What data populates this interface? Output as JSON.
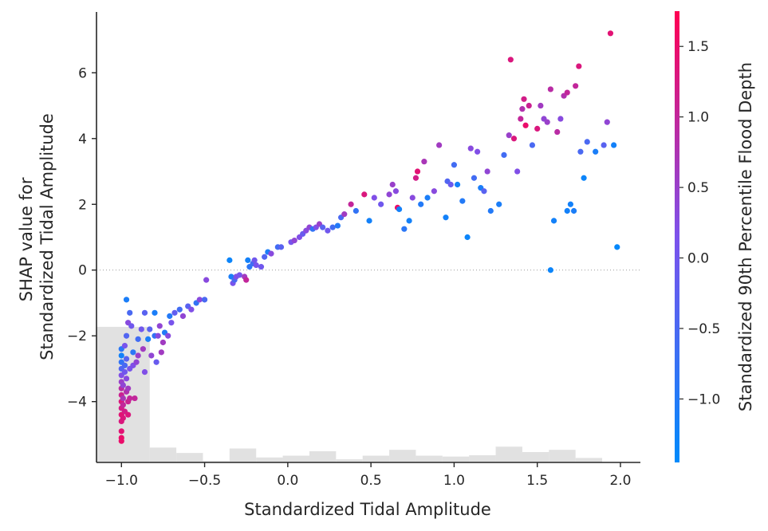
{
  "chart_data": {
    "type": "scatter",
    "title": "",
    "xlabel": "Standardized Tidal Amplitude",
    "ylabel_lines": [
      "SHAP value for",
      "Standardized Tidal Amplitude"
    ],
    "colorbar_label": "Standardized 90th Percentile Flood Depth",
    "xlim": [
      -1.15,
      2.12
    ],
    "ylim": [
      -5.85,
      7.85
    ],
    "xticks": [
      -1.0,
      -0.5,
      0.0,
      0.5,
      1.0,
      1.5,
      2.0
    ],
    "xtick_labels": [
      "−1.0",
      "−0.5",
      "0.0",
      "0.5",
      "1.0",
      "1.5",
      "2.0"
    ],
    "yticks": [
      -4,
      -2,
      0,
      2,
      4,
      6
    ],
    "ytick_labels": [
      "−4",
      "−2",
      "0",
      "2",
      "4",
      "6"
    ],
    "colorbar": {
      "range": [
        -1.45,
        1.75
      ],
      "ticks": [
        -1.0,
        -0.5,
        0.0,
        0.5,
        1.0,
        1.5
      ],
      "tick_labels": [
        "−1.0",
        "−0.5",
        "0.0",
        "0.5",
        "1.0",
        "1.5"
      ],
      "colors": [
        "#008afb",
        "#7c52ec",
        "#ff0052"
      ]
    },
    "zero_line": true,
    "grid": false,
    "histogram": {
      "bin_edges": [
        -1.15,
        -0.83,
        -0.67,
        -0.51,
        -0.35,
        -0.19,
        -0.03,
        0.13,
        0.29,
        0.45,
        0.61,
        0.77,
        0.93,
        1.09,
        1.25,
        1.41,
        1.57,
        1.73,
        1.89,
        2.05
      ],
      "heights": [
        30.1,
        3.3,
        2.1,
        0.3,
        3.1,
        1.1,
        1.5,
        2.5,
        0.7,
        1.5,
        2.8,
        1.5,
        1.3,
        1.6,
        3.5,
        2.3,
        2.8,
        1.0,
        0.0
      ],
      "color": "#e1e1e1"
    },
    "points": [
      [
        -1.0,
        -5.2,
        1.5
      ],
      [
        -1.0,
        -5.1,
        1.5
      ],
      [
        -1.0,
        -4.9,
        1.4
      ],
      [
        -1.0,
        -4.6,
        1.3
      ],
      [
        -1.0,
        -4.4,
        1.4
      ],
      [
        -1.0,
        -4.2,
        1.2
      ],
      [
        -1.0,
        -4.0,
        1.3
      ],
      [
        -1.0,
        -3.8,
        1.1
      ],
      [
        -1.0,
        -3.6,
        0.9
      ],
      [
        -1.0,
        -3.4,
        0.5
      ],
      [
        -1.0,
        -3.2,
        0.2
      ],
      [
        -1.0,
        -3.0,
        -0.4
      ],
      [
        -1.0,
        -2.8,
        -0.8
      ],
      [
        -1.0,
        -2.6,
        -1.2
      ],
      [
        -1.0,
        -2.4,
        -0.9
      ],
      [
        -0.99,
        -4.5,
        1.3
      ],
      [
        -0.99,
        -4.1,
        1.0
      ],
      [
        -0.99,
        -3.9,
        0.7
      ],
      [
        -0.99,
        -3.5,
        0.4
      ],
      [
        -0.98,
        -3.1,
        0.0
      ],
      [
        -0.98,
        -2.9,
        -0.5
      ],
      [
        -0.98,
        -4.3,
        1.2
      ],
      [
        -0.97,
        -3.7,
        0.8
      ],
      [
        -0.97,
        -3.3,
        0.3
      ],
      [
        -0.97,
        -2.7,
        -0.3
      ],
      [
        -0.96,
        -4.4,
        1.3
      ],
      [
        -0.96,
        -4.0,
        1.1
      ],
      [
        -0.96,
        -3.6,
        0.6
      ],
      [
        -0.95,
        -3.0,
        0.1
      ],
      [
        -0.95,
        -3.9,
        1.0
      ],
      [
        -0.98,
        -2.3,
        0.1
      ],
      [
        -0.97,
        -2.0,
        -0.4
      ],
      [
        -0.96,
        -1.6,
        0.3
      ],
      [
        -0.95,
        -1.3,
        -0.5
      ],
      [
        -0.97,
        -0.9,
        -1.1
      ],
      [
        -0.94,
        -1.7,
        0.0
      ],
      [
        -0.93,
        -2.5,
        -0.9
      ],
      [
        -0.93,
        -2.9,
        0.2
      ],
      [
        -0.92,
        -3.9,
        1.0
      ],
      [
        -0.91,
        -2.8,
        0.4
      ],
      [
        -0.9,
        -2.6,
        0.5
      ],
      [
        -0.9,
        -2.1,
        -0.6
      ],
      [
        -0.88,
        -1.8,
        0.0
      ],
      [
        -0.87,
        -2.4,
        0.6
      ],
      [
        -0.86,
        -1.3,
        -0.3
      ],
      [
        -0.86,
        -3.1,
        0.2
      ],
      [
        -0.84,
        -2.1,
        -1.1
      ],
      [
        -0.83,
        -1.8,
        -0.3
      ],
      [
        -0.82,
        -2.6,
        0.4
      ],
      [
        -0.8,
        -1.3,
        -1.1
      ],
      [
        -0.8,
        -2.0,
        -0.8
      ],
      [
        -0.79,
        -2.8,
        -0.1
      ],
      [
        -0.78,
        -2.0,
        0.3
      ],
      [
        -0.77,
        -1.7,
        0.4
      ],
      [
        -0.76,
        -2.5,
        0.6
      ],
      [
        -0.75,
        -2.2,
        0.6
      ],
      [
        -0.74,
        -1.9,
        -1.0
      ],
      [
        -0.72,
        -2.0,
        0.3
      ],
      [
        -0.71,
        -1.4,
        -1.0
      ],
      [
        -0.7,
        -1.6,
        0.1
      ],
      [
        -0.68,
        -1.3,
        -0.2
      ],
      [
        -0.65,
        -1.2,
        -0.6
      ],
      [
        -0.63,
        -1.4,
        0.4
      ],
      [
        -0.6,
        -1.1,
        -0.3
      ],
      [
        -0.58,
        -1.2,
        0.2
      ],
      [
        -0.55,
        -1.0,
        -0.8
      ],
      [
        -0.53,
        -0.9,
        0.3
      ],
      [
        -0.5,
        -0.9,
        -0.5
      ],
      [
        -0.49,
        -0.3,
        0.3
      ],
      [
        -0.35,
        0.3,
        -1.3
      ],
      [
        -0.34,
        -0.2,
        -1.1
      ],
      [
        -0.33,
        -0.4,
        0.1
      ],
      [
        -0.32,
        -0.3,
        -0.5
      ],
      [
        -0.31,
        -0.2,
        0.2
      ],
      [
        -0.29,
        -0.15,
        0.1
      ],
      [
        -0.26,
        -0.2,
        0.6
      ],
      [
        -0.25,
        -0.3,
        1.0
      ],
      [
        -0.24,
        0.3,
        -1.2
      ],
      [
        -0.23,
        0.1,
        -0.9
      ],
      [
        -0.21,
        0.2,
        -0.6
      ],
      [
        -0.2,
        0.3,
        0.0
      ],
      [
        -0.19,
        0.15,
        0.1
      ],
      [
        -0.16,
        0.1,
        0.0
      ],
      [
        -0.14,
        0.4,
        -0.4
      ],
      [
        -0.12,
        0.55,
        -1.1
      ],
      [
        -0.1,
        0.5,
        0.3
      ],
      [
        -0.06,
        0.7,
        -0.6
      ],
      [
        -0.04,
        0.7,
        -0.3
      ],
      [
        0.02,
        0.85,
        0.1
      ],
      [
        0.04,
        0.9,
        0.4
      ],
      [
        0.07,
        1.0,
        0.2
      ],
      [
        0.09,
        1.1,
        -0.1
      ],
      [
        0.11,
        1.2,
        0.3
      ],
      [
        0.13,
        1.3,
        0.4
      ],
      [
        0.15,
        1.25,
        -0.8
      ],
      [
        0.17,
        1.3,
        0.2
      ],
      [
        0.19,
        1.4,
        0.5
      ],
      [
        0.21,
        1.3,
        -0.3
      ],
      [
        0.24,
        1.2,
        0.0
      ],
      [
        0.27,
        1.3,
        -0.6
      ],
      [
        0.3,
        1.35,
        -1.0
      ],
      [
        0.32,
        1.6,
        -0.5
      ],
      [
        0.34,
        1.7,
        0.6
      ],
      [
        0.38,
        2.0,
        1.0
      ],
      [
        0.41,
        1.8,
        -0.8
      ],
      [
        0.46,
        2.3,
        1.3
      ],
      [
        0.49,
        1.5,
        -1.2
      ],
      [
        0.52,
        2.2,
        0.2
      ],
      [
        0.56,
        2.0,
        0.0
      ],
      [
        0.61,
        2.3,
        0.4
      ],
      [
        0.63,
        2.6,
        0.5
      ],
      [
        0.65,
        2.4,
        0.3
      ],
      [
        0.66,
        1.9,
        1.5
      ],
      [
        0.67,
        1.85,
        -1.2
      ],
      [
        0.7,
        1.25,
        -0.9
      ],
      [
        0.73,
        1.5,
        -1.2
      ],
      [
        0.75,
        2.2,
        0.3
      ],
      [
        0.77,
        2.8,
        1.2
      ],
      [
        0.78,
        3.0,
        1.4
      ],
      [
        0.8,
        2.0,
        -1.0
      ],
      [
        0.82,
        3.3,
        0.7
      ],
      [
        0.84,
        2.2,
        -1.1
      ],
      [
        0.88,
        2.4,
        0.3
      ],
      [
        0.91,
        3.8,
        0.6
      ],
      [
        0.95,
        1.6,
        -1.2
      ],
      [
        0.96,
        2.7,
        -0.4
      ],
      [
        0.98,
        2.6,
        -0.1
      ],
      [
        1.0,
        3.2,
        -0.6
      ],
      [
        1.02,
        2.6,
        -1.2
      ],
      [
        1.05,
        2.1,
        -1.0
      ],
      [
        1.08,
        1.0,
        -1.3
      ],
      [
        1.1,
        3.7,
        0.3
      ],
      [
        1.12,
        2.8,
        -0.6
      ],
      [
        1.14,
        3.6,
        0.2
      ],
      [
        1.16,
        2.5,
        -1.1
      ],
      [
        1.18,
        2.4,
        -0.3
      ],
      [
        1.2,
        3.0,
        0.4
      ],
      [
        1.22,
        1.8,
        -1.0
      ],
      [
        1.27,
        2.0,
        -1.1
      ],
      [
        1.3,
        3.5,
        -0.6
      ],
      [
        1.33,
        4.1,
        0.5
      ],
      [
        1.34,
        6.4,
        1.3
      ],
      [
        1.36,
        4.0,
        1.3
      ],
      [
        1.38,
        3.0,
        0.2
      ],
      [
        1.4,
        4.6,
        1.0
      ],
      [
        1.41,
        4.9,
        0.8
      ],
      [
        1.42,
        5.2,
        1.2
      ],
      [
        1.43,
        4.4,
        1.5
      ],
      [
        1.45,
        5.0,
        1.1
      ],
      [
        1.47,
        3.8,
        -0.5
      ],
      [
        1.5,
        4.3,
        1.3
      ],
      [
        1.52,
        5.0,
        0.6
      ],
      [
        1.54,
        4.6,
        0.4
      ],
      [
        1.56,
        4.5,
        0.5
      ],
      [
        1.58,
        5.5,
        0.9
      ],
      [
        1.58,
        0.0,
        -1.3
      ],
      [
        1.6,
        1.5,
        -1.2
      ],
      [
        1.62,
        4.2,
        0.9
      ],
      [
        1.64,
        4.6,
        0.3
      ],
      [
        1.66,
        5.3,
        0.8
      ],
      [
        1.68,
        5.4,
        1.0
      ],
      [
        1.7,
        2.0,
        -1.2
      ],
      [
        1.72,
        1.8,
        -1.1
      ],
      [
        1.73,
        5.6,
        1.0
      ],
      [
        1.75,
        6.2,
        1.3
      ],
      [
        1.76,
        3.6,
        -0.5
      ],
      [
        1.78,
        2.8,
        -1.3
      ],
      [
        1.8,
        3.9,
        -0.5
      ],
      [
        1.85,
        3.6,
        -1.1
      ],
      [
        1.9,
        3.8,
        -0.3
      ],
      [
        1.92,
        4.5,
        0.4
      ],
      [
        1.94,
        7.2,
        1.4
      ],
      [
        1.96,
        3.8,
        -1.2
      ],
      [
        1.98,
        0.7,
        -1.4
      ],
      [
        1.68,
        1.8,
        -1.2
      ]
    ]
  }
}
